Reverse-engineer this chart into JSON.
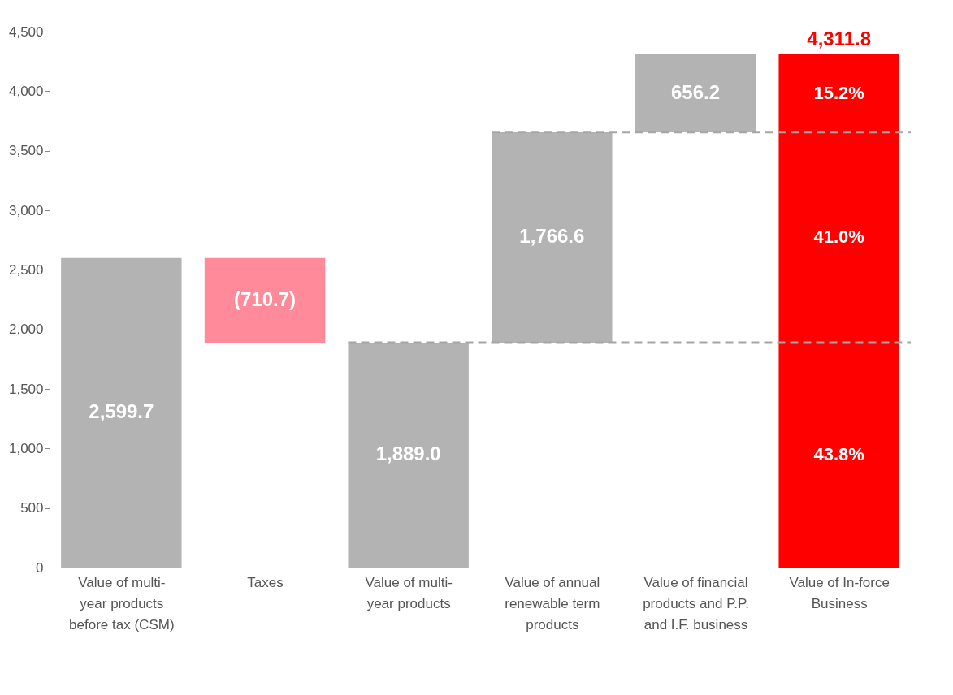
{
  "chart_data": {
    "type": "bar",
    "categories": [
      "Value of multi-year products before tax (CSM)",
      "Taxes",
      "Value of multi-year products",
      "Value of annual renewable term products",
      "Value of financial products and P.P. and I.F. business",
      "Value of In-force Business"
    ],
    "values": [
      2599.7,
      -710.7,
      1889.0,
      1766.6,
      656.2,
      4311.8
    ],
    "base": [
      0,
      2599.7,
      0,
      1889.0,
      3655.6,
      0
    ],
    "colors": [
      "#b3b3b3",
      "#ff8a9a",
      "#b3b3b3",
      "#b3b3b3",
      "#b3b3b3",
      "#ff0000"
    ],
    "value_labels": [
      "2,599.7",
      "(710.7)",
      "1,889.0",
      "1,766.6",
      "656.2",
      "4,311.8"
    ],
    "ylim": [
      0,
      4500
    ],
    "yticks": [
      0,
      500,
      {
        "value": 1000,
        "label": "1,000"
      },
      {
        "value": 1500,
        "label": "1,500"
      },
      {
        "value": 2000,
        "label": "2,000"
      },
      {
        "value": 2500,
        "label": "2,500"
      },
      {
        "value": 3000,
        "label": "3,000"
      },
      {
        "value": 3500,
        "label": "3,500"
      },
      {
        "value": 4000,
        "label": "4,000"
      },
      {
        "value": 4500,
        "label": "4,500"
      }
    ],
    "grid": false,
    "ref_lines": [
      {
        "axis": "y",
        "value": 1889.0,
        "color": "#a6a6a6",
        "line_style": "dashed"
      },
      {
        "axis": "y",
        "value": 3655.6,
        "color": "#a6a6a6",
        "line_style": "dashed"
      }
    ],
    "annotations": [
      "43.8%",
      "41.0%",
      "15.2%"
    ]
  }
}
